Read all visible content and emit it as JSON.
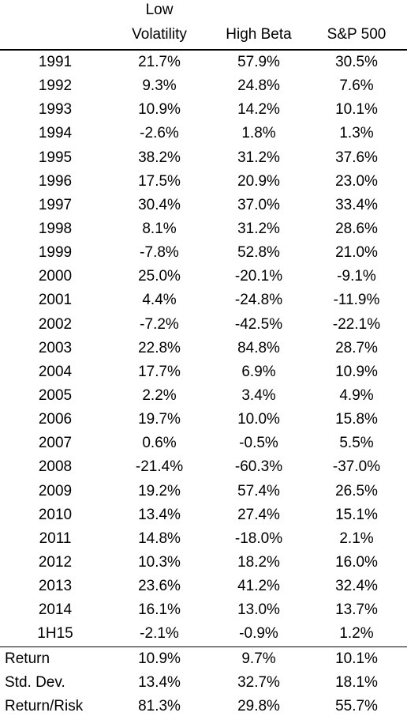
{
  "table": {
    "headers": [
      {
        "line1": "",
        "line2": ""
      },
      {
        "line1": "Low",
        "line2": "Volatility"
      },
      {
        "line1": "",
        "line2": "High Beta"
      },
      {
        "line1": "",
        "line2": "S&P 500"
      }
    ],
    "rows": [
      [
        "1991",
        "21.7%",
        "57.9%",
        "30.5%"
      ],
      [
        "1992",
        "9.3%",
        "24.8%",
        "7.6%"
      ],
      [
        "1993",
        "10.9%",
        "14.2%",
        "10.1%"
      ],
      [
        "1994",
        "-2.6%",
        "1.8%",
        "1.3%"
      ],
      [
        "1995",
        "38.2%",
        "31.2%",
        "37.6%"
      ],
      [
        "1996",
        "17.5%",
        "20.9%",
        "23.0%"
      ],
      [
        "1997",
        "30.4%",
        "37.0%",
        "33.4%"
      ],
      [
        "1998",
        "8.1%",
        "31.2%",
        "28.6%"
      ],
      [
        "1999",
        "-7.8%",
        "52.8%",
        "21.0%"
      ],
      [
        "2000",
        "25.0%",
        "-20.1%",
        "-9.1%"
      ],
      [
        "2001",
        "4.4%",
        "-24.8%",
        "-11.9%"
      ],
      [
        "2002",
        "-7.2%",
        "-42.5%",
        "-22.1%"
      ],
      [
        "2003",
        "22.8%",
        "84.8%",
        "28.7%"
      ],
      [
        "2004",
        "17.7%",
        "6.9%",
        "10.9%"
      ],
      [
        "2005",
        "2.2%",
        "3.4%",
        "4.9%"
      ],
      [
        "2006",
        "19.7%",
        "10.0%",
        "15.8%"
      ],
      [
        "2007",
        "0.6%",
        "-0.5%",
        "5.5%"
      ],
      [
        "2008",
        "-21.4%",
        "-60.3%",
        "-37.0%"
      ],
      [
        "2009",
        "19.2%",
        "57.4%",
        "26.5%"
      ],
      [
        "2010",
        "13.4%",
        "27.4%",
        "15.1%"
      ],
      [
        "2011",
        "14.8%",
        "-18.0%",
        "2.1%"
      ],
      [
        "2012",
        "10.3%",
        "18.2%",
        "16.0%"
      ],
      [
        "2013",
        "23.6%",
        "41.2%",
        "32.4%"
      ],
      [
        "2014",
        "16.1%",
        "13.0%",
        "13.7%"
      ],
      [
        "1H15",
        "-2.1%",
        "-0.9%",
        "1.2%"
      ]
    ],
    "summary": [
      [
        "Return",
        "10.9%",
        "9.7%",
        "10.1%"
      ],
      [
        "Std. Dev.",
        "13.4%",
        "32.7%",
        "18.1%"
      ],
      [
        "Return/Risk",
        "81.3%",
        "29.8%",
        "55.7%"
      ]
    ]
  }
}
